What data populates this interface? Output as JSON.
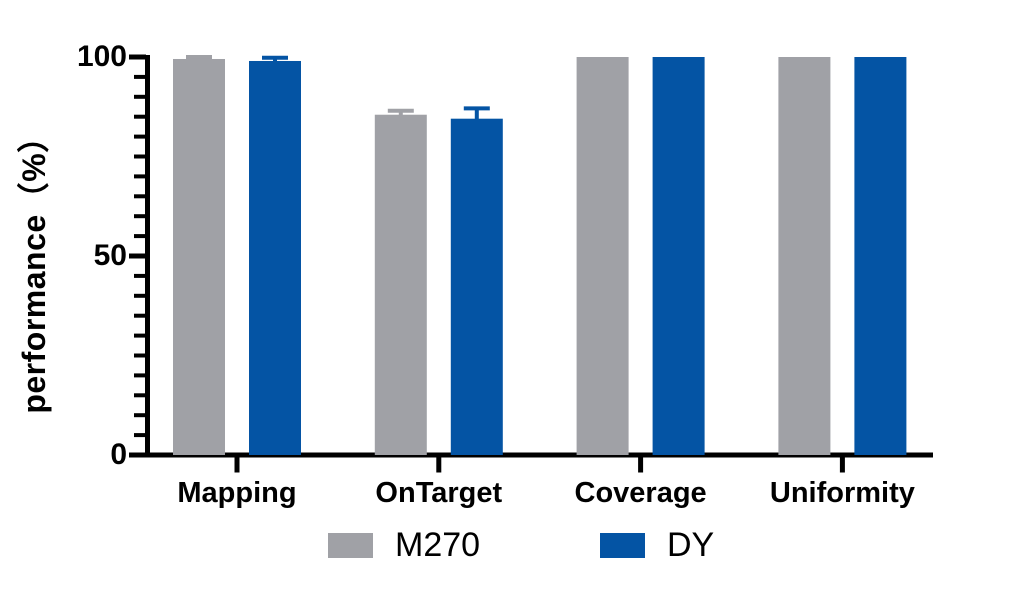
{
  "chart_data": {
    "type": "bar",
    "title": "",
    "xlabel": "",
    "ylabel": "performance（%）",
    "categories": [
      "Mapping",
      "OnTarget",
      "Coverage",
      "Uniformity"
    ],
    "series": [
      {
        "name": "M270",
        "color": "#A0A1A6",
        "values": [
          99.5,
          85.5,
          100,
          100
        ],
        "errors": [
          0.5,
          1.0,
          0,
          0
        ]
      },
      {
        "name": "DY",
        "color": "#0454A4",
        "values": [
          99.0,
          84.5,
          100,
          100
        ],
        "errors": [
          0.8,
          2.6,
          0,
          0
        ]
      }
    ],
    "ylim": [
      0,
      100
    ],
    "yticks": [
      0,
      50,
      100
    ],
    "minor_tick_step": 5,
    "grid": false,
    "legend_position": "bottom",
    "error_bar_style": "upper stem with cap, drawn in series color",
    "axis_color": "#000000",
    "background_color": "#FFFFFF"
  }
}
